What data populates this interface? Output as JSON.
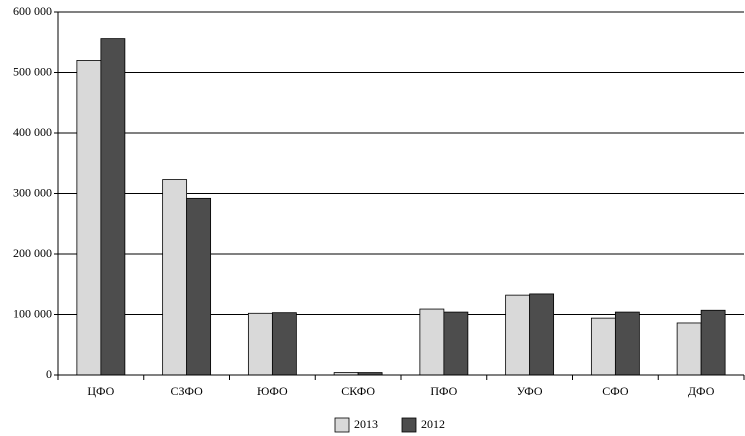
{
  "chart_data": {
    "type": "bar",
    "categories": [
      "ЦФО",
      "СЗФО",
      "ЮФО",
      "СКФО",
      "ПФО",
      "УФО",
      "СФО",
      "ДФО"
    ],
    "series": [
      {
        "name": "2013",
        "color": "#d9d9d9",
        "values": [
          520000,
          323000,
          102000,
          4000,
          109000,
          132000,
          94000,
          86000
        ]
      },
      {
        "name": "2012",
        "color": "#4d4d4d",
        "values": [
          556000,
          292000,
          103000,
          4000,
          104000,
          134000,
          104000,
          107000
        ]
      }
    ],
    "ylim": [
      0,
      600000
    ],
    "yticks": [
      0,
      {
        "value": 100000,
        "label": "100 000"
      },
      {
        "value": 200000,
        "label": "200 000"
      },
      {
        "value": 300000,
        "label": "300 000"
      },
      {
        "value": 400000,
        "label": "400 000"
      },
      {
        "value": 500000,
        "label": "500 000"
      },
      {
        "value": 600000,
        "label": "600 000"
      }
    ],
    "grid": true
  }
}
